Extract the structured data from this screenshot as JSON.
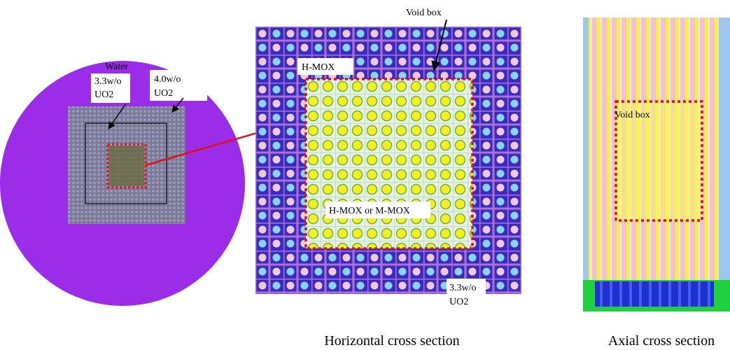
{
  "left_view": {
    "water_label": "Water",
    "inner_label": [
      "3.3w/o",
      "UO2"
    ],
    "outer_label": [
      "4.0w/o",
      "UO2"
    ]
  },
  "horizontal_view": {
    "void_box_label": "Void box",
    "hmox_label": "H-MOX",
    "center_label": "H-MOX or M-MOX",
    "outer_label": [
      "3.3w/o",
      "UO2"
    ],
    "caption": "Horizontal cross section"
  },
  "axial_view": {
    "void_box_label": "Void box",
    "caption": "Axial cross section"
  }
}
